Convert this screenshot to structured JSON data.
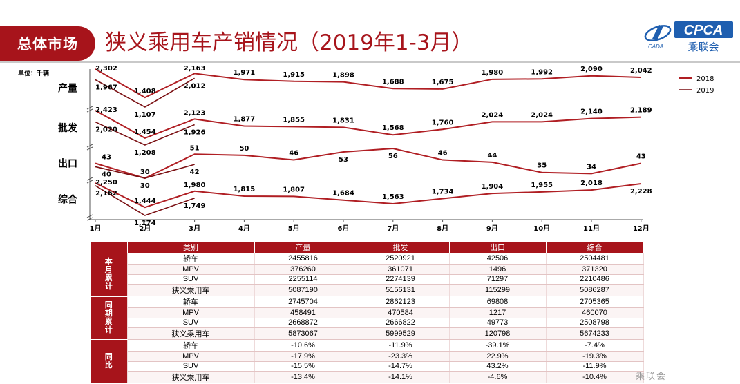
{
  "header": {
    "tag": "总体市场",
    "title": "狭义乘用车产销情况（2019年1-3月）",
    "logo_text_en": "CPCA",
    "logo_text_cn": "乘联会",
    "logo_badge": "CADA"
  },
  "chart_unit": "单位：千辆",
  "watermark": "乘联会",
  "colors": {
    "brand": "#a7141b",
    "line_2018": "#b01e23",
    "line_2019": "#7a0f12"
  },
  "chart_data": {
    "type": "line",
    "categories": [
      "1月",
      "2月",
      "3月",
      "4月",
      "5月",
      "6月",
      "7月",
      "8月",
      "9月",
      "10月",
      "11月",
      "12月"
    ],
    "legend": [
      "2018",
      "2019"
    ],
    "legend_position": "right",
    "panels": [
      {
        "name": "产量",
        "series": [
          {
            "name": "2018",
            "values": [
              2302,
              1408,
              2163,
              1971,
              1915,
              1898,
              1688,
              1675,
              1980,
              1992,
              2090,
              2042
            ]
          },
          {
            "name": "2019",
            "values": [
              1967,
              1107,
              2012
            ]
          }
        ]
      },
      {
        "name": "批发",
        "series": [
          {
            "name": "2018",
            "values": [
              2423,
              1454,
              2123,
              1877,
              1855,
              1831,
              1568,
              1760,
              2024,
              2024,
              2140,
              2189
            ]
          },
          {
            "name": "2019",
            "values": [
              2020,
              1208,
              1926
            ]
          }
        ]
      },
      {
        "name": "出口",
        "series": [
          {
            "name": "2018",
            "values": [
              43,
              30,
              51,
              50,
              46,
              53,
              56,
              46,
              44,
              35,
              34,
              43
            ]
          },
          {
            "name": "2019",
            "values": [
              40,
              30,
              42
            ]
          }
        ]
      },
      {
        "name": "综合",
        "series": [
          {
            "name": "2018",
            "values": [
              2250,
              1444,
              1980,
              1815,
              1807,
              1684,
              1563,
              1734,
              1904,
              1955,
              2018,
              2228
            ]
          },
          {
            "name": "2019",
            "values": [
              2162,
              1174,
              1749
            ]
          }
        ]
      }
    ]
  },
  "table": {
    "headers": [
      "类别",
      "产量",
      "批发",
      "出口",
      "综合"
    ],
    "groups": [
      {
        "label": "本月累计",
        "rows": [
          [
            "轿车",
            "2455816",
            "2520921",
            "42506",
            "2504481"
          ],
          [
            "MPV",
            "376260",
            "361071",
            "1496",
            "371320"
          ],
          [
            "SUV",
            "2255114",
            "2274139",
            "71297",
            "2210486"
          ],
          [
            "狭义乘用车",
            "5087190",
            "5156131",
            "115299",
            "5086287"
          ]
        ]
      },
      {
        "label": "同期累计",
        "rows": [
          [
            "轿车",
            "2745704",
            "2862123",
            "69808",
            "2705365"
          ],
          [
            "MPV",
            "458491",
            "470584",
            "1217",
            "460070"
          ],
          [
            "SUV",
            "2668872",
            "2666822",
            "49773",
            "2508798"
          ],
          [
            "狭义乘用车",
            "5873067",
            "5999529",
            "120798",
            "5674233"
          ]
        ]
      },
      {
        "label": "同比",
        "rows": [
          [
            "轿车",
            "-10.6%",
            "-11.9%",
            "-39.1%",
            "-7.4%"
          ],
          [
            "MPV",
            "-17.9%",
            "-23.3%",
            "22.9%",
            "-19.3%"
          ],
          [
            "SUV",
            "-15.5%",
            "-14.7%",
            "43.2%",
            "-11.9%"
          ],
          [
            "狭义乘用车",
            "-13.4%",
            "-14.1%",
            "-4.6%",
            "-10.4%"
          ]
        ]
      }
    ]
  }
}
